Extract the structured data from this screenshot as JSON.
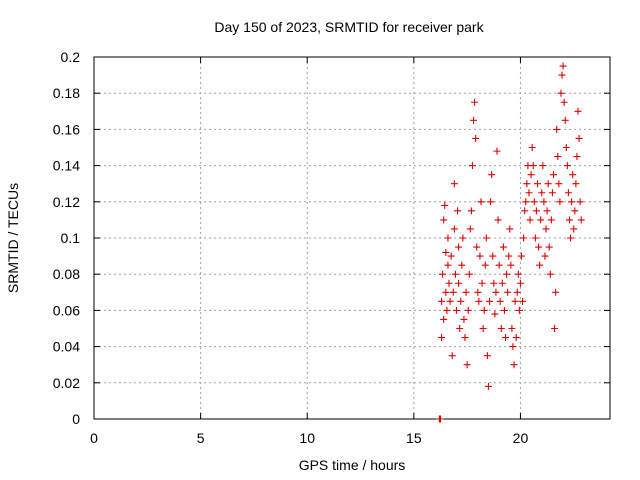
{
  "chart_data": {
    "type": "scatter",
    "title": "Day 150 of 2023, SRMTID for receiver park",
    "xlabel": "GPS time / hours",
    "ylabel": "SRMTID / TECUs",
    "xlim": [
      0,
      24.2
    ],
    "ylim": [
      0,
      0.2
    ],
    "xticks": [
      0,
      5,
      10,
      15,
      20
    ],
    "xtick_labels": [
      "0",
      "5",
      "10",
      "15",
      "20"
    ],
    "yticks": [
      0,
      0.02,
      0.04,
      0.06,
      0.08,
      0.1,
      0.12,
      0.14,
      0.16,
      0.18,
      0.2
    ],
    "ytick_labels": [
      "0",
      "0.02",
      "0.04",
      "0.06",
      "0.08",
      "0.1",
      "0.12",
      "0.14",
      "0.16",
      "0.18",
      "0.2"
    ],
    "grid": true,
    "marker": "+",
    "marker_color": "#e00000",
    "series": [
      {
        "name": "SRMTID",
        "points": [
          [
            16.2,
            0.0
          ],
          [
            16.25,
            0.0
          ],
          [
            16.3,
            0.045
          ],
          [
            16.3,
            0.065
          ],
          [
            16.35,
            0.08
          ],
          [
            16.4,
            0.11
          ],
          [
            16.4,
            0.055
          ],
          [
            16.45,
            0.118
          ],
          [
            16.5,
            0.092
          ],
          [
            16.5,
            0.07
          ],
          [
            16.55,
            0.06
          ],
          [
            16.6,
            0.085
          ],
          [
            16.6,
            0.1
          ],
          [
            16.65,
            0.075
          ],
          [
            16.7,
            0.065
          ],
          [
            16.75,
            0.09
          ],
          [
            16.8,
            0.035
          ],
          [
            16.85,
            0.07
          ],
          [
            16.9,
            0.105
          ],
          [
            16.9,
            0.13
          ],
          [
            16.95,
            0.08
          ],
          [
            17.0,
            0.06
          ],
          [
            17.05,
            0.115
          ],
          [
            17.1,
            0.095
          ],
          [
            17.1,
            0.075
          ],
          [
            17.15,
            0.05
          ],
          [
            17.2,
            0.065
          ],
          [
            17.25,
            0.085
          ],
          [
            17.3,
            0.1
          ],
          [
            17.35,
            0.055
          ],
          [
            17.4,
            0.045
          ],
          [
            17.45,
            0.07
          ],
          [
            17.5,
            0.03
          ],
          [
            17.55,
            0.06
          ],
          [
            17.6,
            0.08
          ],
          [
            17.65,
            0.105
          ],
          [
            17.7,
            0.115
          ],
          [
            17.75,
            0.14
          ],
          [
            17.8,
            0.165
          ],
          [
            17.85,
            0.175
          ],
          [
            17.9,
            0.155
          ],
          [
            17.95,
            0.095
          ],
          [
            18.0,
            0.07
          ],
          [
            18.05,
            0.065
          ],
          [
            18.1,
            0.09
          ],
          [
            18.15,
            0.12
          ],
          [
            18.2,
            0.075
          ],
          [
            18.25,
            0.05
          ],
          [
            18.3,
            0.06
          ],
          [
            18.35,
            0.085
          ],
          [
            18.4,
            0.1
          ],
          [
            18.45,
            0.035
          ],
          [
            18.5,
            0.018
          ],
          [
            18.55,
            0.065
          ],
          [
            18.6,
            0.12
          ],
          [
            18.65,
            0.135
          ],
          [
            18.7,
            0.09
          ],
          [
            18.75,
            0.075
          ],
          [
            18.8,
            0.058
          ],
          [
            18.85,
            0.07
          ],
          [
            18.9,
            0.148
          ],
          [
            18.95,
            0.11
          ],
          [
            19.0,
            0.085
          ],
          [
            19.05,
            0.065
          ],
          [
            19.1,
            0.05
          ],
          [
            19.15,
            0.075
          ],
          [
            19.2,
            0.095
          ],
          [
            19.25,
            0.06
          ],
          [
            19.3,
            0.045
          ],
          [
            19.35,
            0.08
          ],
          [
            19.4,
            0.07
          ],
          [
            19.45,
            0.09
          ],
          [
            19.5,
            0.105
          ],
          [
            19.55,
            0.085
          ],
          [
            19.6,
            0.05
          ],
          [
            19.65,
            0.04
          ],
          [
            19.7,
            0.03
          ],
          [
            19.75,
            0.065
          ],
          [
            19.8,
            0.045
          ],
          [
            19.85,
            0.07
          ],
          [
            19.9,
            0.08
          ],
          [
            19.95,
            0.06
          ],
          [
            20.0,
            0.075
          ],
          [
            20.05,
            0.09
          ],
          [
            20.1,
            0.065
          ],
          [
            20.15,
            0.1
          ],
          [
            20.2,
            0.115
          ],
          [
            20.25,
            0.12
          ],
          [
            20.3,
            0.13
          ],
          [
            20.35,
            0.14
          ],
          [
            20.4,
            0.125
          ],
          [
            20.45,
            0.11
          ],
          [
            20.5,
            0.135
          ],
          [
            20.55,
            0.15
          ],
          [
            20.6,
            0.14
          ],
          [
            20.65,
            0.12
          ],
          [
            20.7,
            0.1
          ],
          [
            20.75,
            0.115
          ],
          [
            20.8,
            0.13
          ],
          [
            20.85,
            0.095
          ],
          [
            20.9,
            0.085
          ],
          [
            20.95,
            0.11
          ],
          [
            21.0,
            0.125
          ],
          [
            21.05,
            0.14
          ],
          [
            21.1,
            0.12
          ],
          [
            21.15,
            0.09
          ],
          [
            21.2,
            0.105
          ],
          [
            21.25,
            0.115
          ],
          [
            21.3,
            0.13
          ],
          [
            21.35,
            0.095
          ],
          [
            21.4,
            0.08
          ],
          [
            21.45,
            0.11
          ],
          [
            21.5,
            0.125
          ],
          [
            21.55,
            0.135
          ],
          [
            21.6,
            0.05
          ],
          [
            21.65,
            0.07
          ],
          [
            21.7,
            0.16
          ],
          [
            21.75,
            0.145
          ],
          [
            21.8,
            0.13
          ],
          [
            21.85,
            0.12
          ],
          [
            21.9,
            0.18
          ],
          [
            21.95,
            0.19
          ],
          [
            22.0,
            0.195
          ],
          [
            22.05,
            0.175
          ],
          [
            22.1,
            0.165
          ],
          [
            22.15,
            0.15
          ],
          [
            22.2,
            0.14
          ],
          [
            22.25,
            0.125
          ],
          [
            22.3,
            0.11
          ],
          [
            22.35,
            0.1
          ],
          [
            22.4,
            0.12
          ],
          [
            22.45,
            0.135
          ],
          [
            22.5,
            0.105
          ],
          [
            22.55,
            0.115
          ],
          [
            22.6,
            0.13
          ],
          [
            22.65,
            0.145
          ],
          [
            22.7,
            0.17
          ],
          [
            22.75,
            0.155
          ],
          [
            22.8,
            0.12
          ],
          [
            22.85,
            0.11
          ]
        ]
      }
    ]
  }
}
